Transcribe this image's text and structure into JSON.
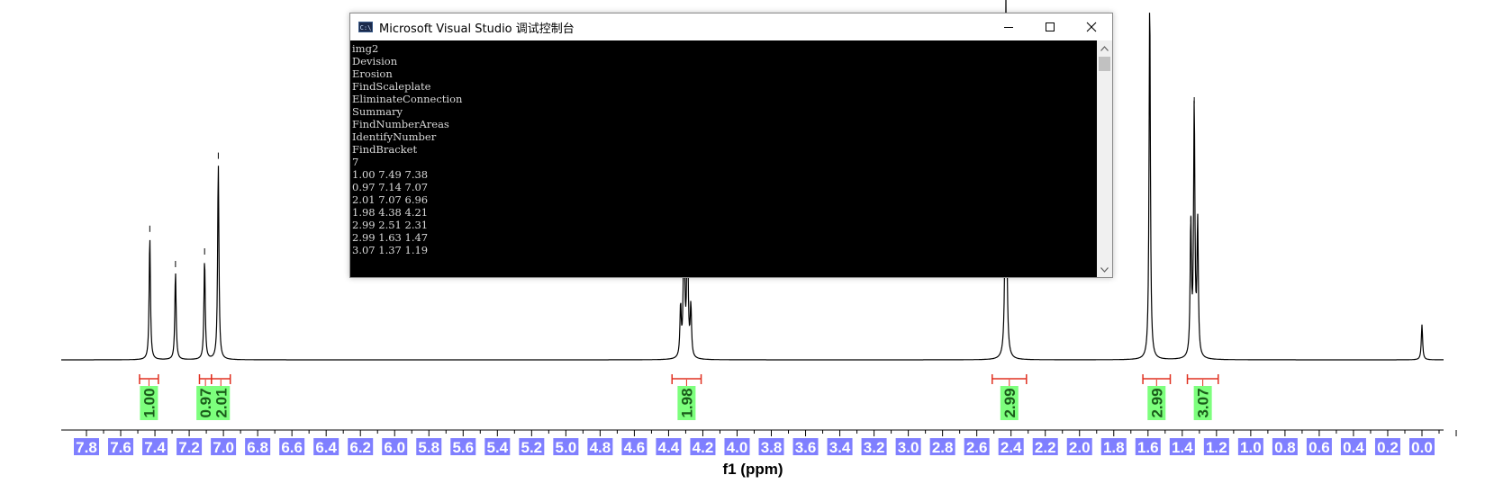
{
  "window": {
    "title": "Microsoft Visual Studio 调试控制台",
    "icon": "console-app-icon",
    "icon_text": "C:\\",
    "controls": [
      "minimize-icon",
      "maximize-icon",
      "close-icon"
    ]
  },
  "console": {
    "lines": [
      "img2",
      "Devision",
      "Erosion",
      "FindScaleplate",
      "EliminateConnection",
      "Summary",
      "FindNumberAreas",
      "IdentifyNumber",
      "FindBracket",
      "7",
      "1.00 7.49 7.38",
      "0.97 7.14 7.07",
      "2.01 7.07 6.96",
      "1.98 4.38 4.21",
      "2.99 2.51 2.31",
      "2.99 1.63 1.47",
      "3.07 1.37 1.19"
    ]
  },
  "colors": {
    "tick_label_bg": "#7f7fff",
    "integral_label_bg": "#7dff7d",
    "integral_bracket": "#e03020",
    "spectrum_line": "#000000"
  },
  "chart_data": {
    "type": "line",
    "title": "",
    "xlabel": "f1 (ppm)",
    "ylabel": "",
    "xlim": [
      7.95,
      0.0
    ],
    "x_reversed": true,
    "x_ticks": [
      "7.8",
      "7.6",
      "7.4",
      "7.2",
      "7.0",
      "6.8",
      "6.6",
      "6.4",
      "6.2",
      "6.0",
      "5.8",
      "5.6",
      "5.4",
      "5.2",
      "5.0",
      "4.8",
      "4.6",
      "4.4",
      "4.2",
      "4.0",
      "3.8",
      "3.6",
      "3.4",
      "3.2",
      "3.0",
      "2.8",
      "2.6",
      "2.4",
      "2.2",
      "2.0",
      "1.8",
      "1.6",
      "1.4",
      "1.2",
      "1.0",
      "0.8",
      "0.6",
      "0.4",
      "0.2",
      "0.0"
    ],
    "peaks": [
      {
        "ppm": 7.43,
        "height": 0.49
      },
      {
        "ppm": 7.28,
        "height": 0.35
      },
      {
        "ppm": 7.11,
        "height": 0.4
      },
      {
        "ppm": 7.03,
        "height": 0.78
      },
      {
        "ppm": 4.33,
        "height": 0.2
      },
      {
        "ppm": 4.31,
        "height": 0.6
      },
      {
        "ppm": 4.29,
        "height": 0.6
      },
      {
        "ppm": 4.27,
        "height": 0.2
      },
      {
        "ppm": 2.43,
        "height": 1.45
      },
      {
        "ppm": 1.59,
        "height": 1.45
      },
      {
        "ppm": 1.35,
        "height": 0.53
      },
      {
        "ppm": 1.33,
        "height": 1.0
      },
      {
        "ppm": 1.31,
        "height": 0.53
      },
      {
        "ppm": 0.0,
        "height": 0.14
      }
    ],
    "integrals": [
      {
        "value": "1.00",
        "from": 7.49,
        "to": 7.38
      },
      {
        "value": "0.97",
        "from": 7.14,
        "to": 7.07
      },
      {
        "value": "2.01",
        "from": 7.07,
        "to": 6.96
      },
      {
        "value": "1.98",
        "from": 4.38,
        "to": 4.21
      },
      {
        "value": "2.99",
        "from": 2.51,
        "to": 2.31
      },
      {
        "value": "2.99",
        "from": 1.63,
        "to": 1.47
      },
      {
        "value": "3.07",
        "from": 1.37,
        "to": 1.19
      }
    ]
  }
}
